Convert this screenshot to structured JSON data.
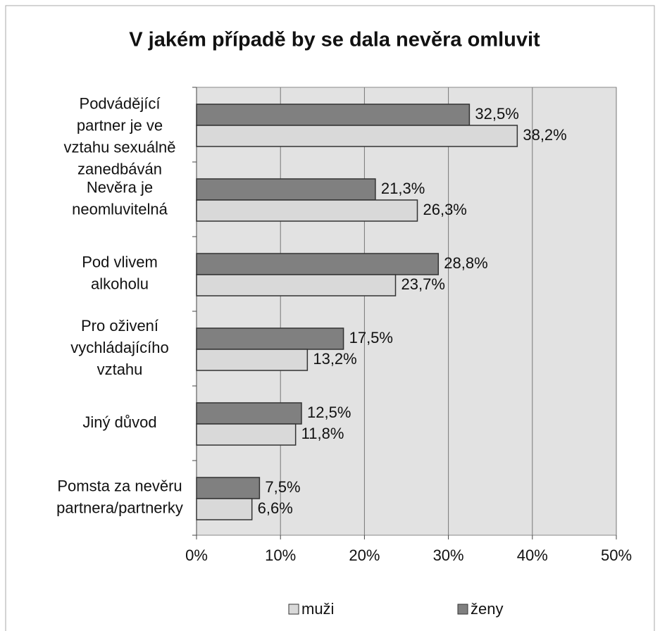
{
  "chart_data": {
    "type": "barh",
    "title": "V jakém případě by se dala nevěra omluvit",
    "categories": [
      "Podvádějící\npartner je ve\nvztahu sexuálně\nzanedbáván",
      "Nevěra je\nneomluvitelná",
      "Pod vlivem\nalkoholu",
      "Pro oživení\nvychládajícího\nvztahu",
      "Jiný důvod",
      "Pomsta za nevěru\npartnera/partnerky"
    ],
    "series": [
      {
        "name": "muži",
        "color": "#d9d9d9",
        "values": [
          38.2,
          26.3,
          23.7,
          13.2,
          11.8,
          6.6
        ],
        "value_labels": [
          "38,2%",
          "26,3%",
          "23,7%",
          "13,2%",
          "11,8%",
          "6,6%"
        ]
      },
      {
        "name": "ženy",
        "color": "#808080",
        "values": [
          32.5,
          21.3,
          28.8,
          17.5,
          12.5,
          7.5
        ],
        "value_labels": [
          "32,5%",
          "21,3%",
          "28,8%",
          "17,5%",
          "12,5%",
          "7,5%"
        ]
      }
    ],
    "xlim": [
      0,
      50
    ],
    "xticks": [
      {
        "value": 0,
        "label": "0%"
      },
      {
        "value": 10,
        "label": "10%"
      },
      {
        "value": 20,
        "label": "20%"
      },
      {
        "value": 30,
        "label": "30%"
      },
      {
        "value": 40,
        "label": "40%"
      },
      {
        "value": 50,
        "label": "50%"
      }
    ],
    "grid": true
  }
}
